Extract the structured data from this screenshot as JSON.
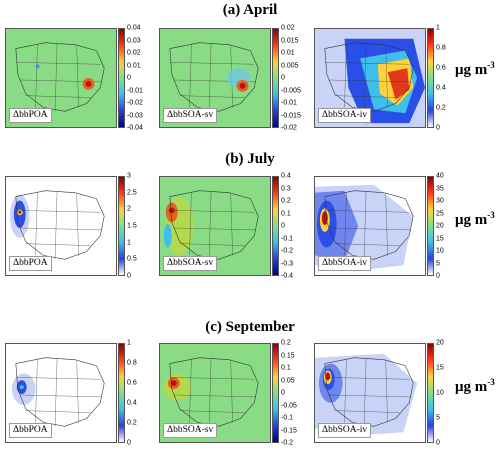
{
  "rows": [
    {
      "title": "(a) April",
      "panels": [
        {
          "label": "ΔbbPOA",
          "ticks": [
            "0.04",
            "0.03",
            "0.02",
            "0.01",
            "0",
            "-0.01",
            "-0.02",
            "-0.03",
            "-0.04"
          ],
          "bar": "div"
        },
        {
          "label": "ΔbbSOA-sv",
          "ticks": [
            "0.02",
            "0.015",
            "0.01",
            "0.005",
            "0",
            "-0.005",
            "-0.01",
            "-0.015",
            "-0.02"
          ],
          "bar": "div"
        },
        {
          "label": "ΔbbSOA-iv",
          "ticks": [
            "1",
            "0.8",
            "0.6",
            "0.4",
            "0.2",
            "0"
          ],
          "bar": "seq"
        }
      ]
    },
    {
      "title": "(b) July",
      "panels": [
        {
          "label": "ΔbbPOA",
          "ticks": [
            "3",
            "2.5",
            "2",
            "1.5",
            "1",
            "0.5",
            "0"
          ],
          "bar": "seq"
        },
        {
          "label": "ΔbbSOA-sv",
          "ticks": [
            "0.4",
            "0.3",
            "0.2",
            "0.1",
            "0",
            "-0.1",
            "-0.2",
            "-0.3",
            "-0.4"
          ],
          "bar": "div"
        },
        {
          "label": "ΔbbSOA-iv",
          "ticks": [
            "40",
            "35",
            "30",
            "25",
            "20",
            "15",
            "10",
            "5",
            "0"
          ],
          "bar": "seq"
        }
      ]
    },
    {
      "title": "(c) September",
      "panels": [
        {
          "label": "ΔbbPOA",
          "ticks": [
            "1",
            "0.8",
            "0.6",
            "0.4",
            "0.2",
            "0"
          ],
          "bar": "seq"
        },
        {
          "label": "ΔbbSOA-sv",
          "ticks": [
            "0.2",
            "0.15",
            "0.1",
            "0.05",
            "0",
            "-0.05",
            "-0.1",
            "-0.15",
            "-0.2"
          ],
          "bar": "div"
        },
        {
          "label": "ΔbbSOA-iv",
          "ticks": [
            "20",
            "15",
            "10",
            "5",
            "0"
          ],
          "bar": "seq"
        }
      ]
    }
  ],
  "unit": {
    "base": "μg m",
    "exp": "-3"
  },
  "colors": {
    "ocean_green": "#86d98a",
    "land_white": "#ffffff",
    "hot": "#d71a1a",
    "blue": "#2a3fe0"
  }
}
